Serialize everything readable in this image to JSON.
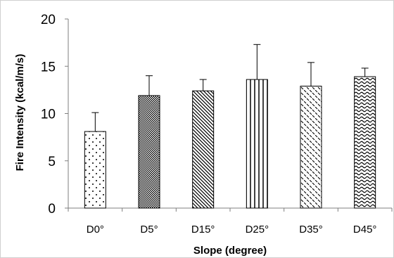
{
  "chart_data": {
    "type": "bar",
    "title": "",
    "xlabel": "Slope (degree)",
    "ylabel": "Fire Intensity (kcal/m/s)",
    "ylim": [
      0,
      20
    ],
    "yticks": [
      0,
      5,
      10,
      15,
      20
    ],
    "categories": [
      "D0°",
      "D5°",
      "D15°",
      "D25°",
      "D35°",
      "D45°"
    ],
    "values": [
      8.1,
      11.9,
      12.4,
      13.6,
      12.9,
      13.9
    ],
    "error_upper": [
      2.0,
      2.1,
      1.2,
      3.7,
      2.5,
      0.9
    ],
    "patterns": [
      "dots-sparse",
      "checker-fine",
      "diagonal-down",
      "vertical-lines",
      "dashed-diagonal",
      "waves"
    ],
    "bar_color": "#000000",
    "grid": false,
    "legend": "none"
  }
}
